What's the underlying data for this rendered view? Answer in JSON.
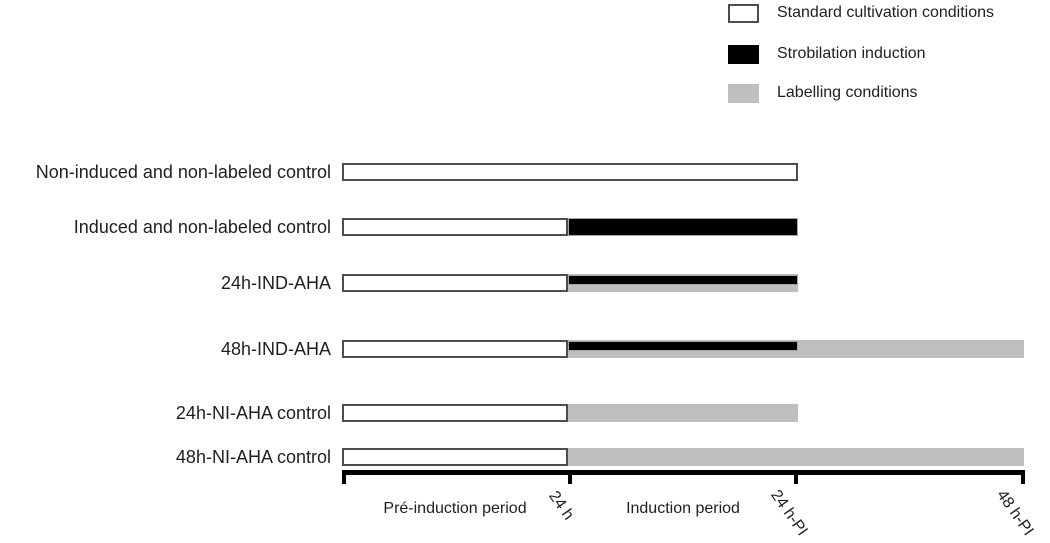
{
  "colors": {
    "background": "#ffffff",
    "standard_fill": "#ffffff",
    "standard_border": "#4d4d4d",
    "induction_fill": "#000000",
    "induction_border": "#a6a6a6",
    "labelling_fill": "#bfbfbf",
    "text": "#1f1f1f",
    "axis": "#000000"
  },
  "legend": {
    "items": [
      {
        "label": "Standard cultivation conditions",
        "condition": "standard"
      },
      {
        "label": "Strobilation induction",
        "condition": "induction"
      },
      {
        "label": "Labelling conditions",
        "condition": "labelling"
      }
    ]
  },
  "chart_data": {
    "type": "bar",
    "orientation": "horizontal",
    "unit": "hours",
    "x_ticks": [
      {
        "t": 0,
        "label": ""
      },
      {
        "t": 24,
        "label": "24 h"
      },
      {
        "t": 48,
        "label": "24 h-PI"
      },
      {
        "t": 72,
        "label": "48 h-PI"
      }
    ],
    "period_labels": [
      "Pré-induction period",
      "Induction period"
    ],
    "rows": [
      {
        "label": "Non-induced and non-labeled control",
        "bars": [
          {
            "condition": "standard",
            "from": 0,
            "to": 48
          }
        ]
      },
      {
        "label": "Induced and non-labeled control",
        "bars": [
          {
            "condition": "standard",
            "from": 0,
            "to": 24
          },
          {
            "condition": "induction",
            "from": 24,
            "to": 48
          }
        ]
      },
      {
        "label": "24h-IND-AHA",
        "bars": [
          {
            "condition": "standard",
            "from": 0,
            "to": 24
          },
          {
            "condition": "labelling",
            "from": 24,
            "to": 48
          },
          {
            "condition": "induction",
            "from": 24,
            "to": 48,
            "overlay": true
          }
        ]
      },
      {
        "label": "48h-IND-AHA",
        "bars": [
          {
            "condition": "standard",
            "from": 0,
            "to": 24
          },
          {
            "condition": "labelling",
            "from": 24,
            "to": 72
          },
          {
            "condition": "induction",
            "from": 24,
            "to": 48,
            "overlay": true
          }
        ]
      },
      {
        "label": "24h-NI-AHA control",
        "bars": [
          {
            "condition": "standard",
            "from": 0,
            "to": 24
          },
          {
            "condition": "labelling",
            "from": 24,
            "to": 48
          }
        ]
      },
      {
        "label": "48h-NI-AHA control",
        "bars": [
          {
            "condition": "standard",
            "from": 0,
            "to": 24
          },
          {
            "condition": "labelling",
            "from": 24,
            "to": 72
          }
        ]
      }
    ]
  }
}
